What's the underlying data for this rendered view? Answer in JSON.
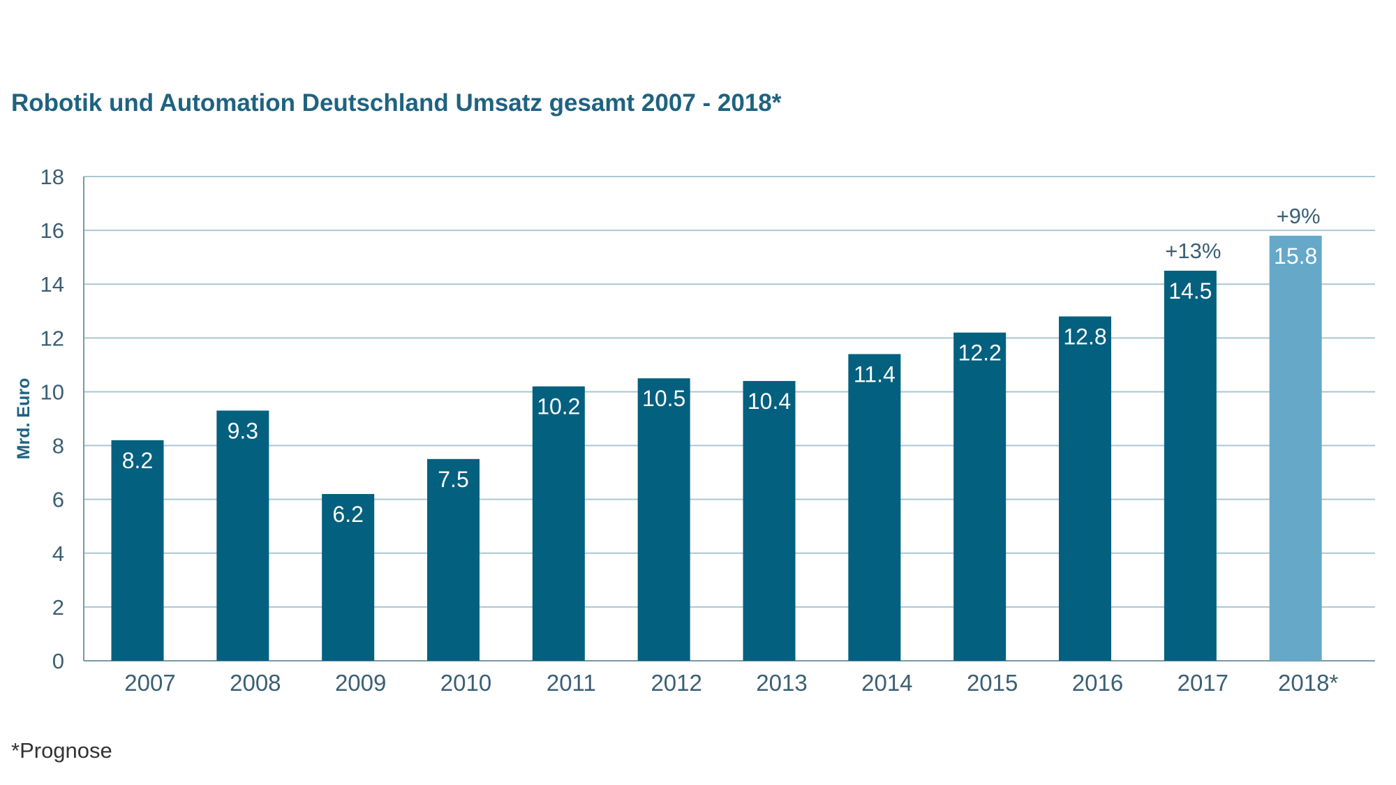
{
  "chart_data": {
    "type": "bar",
    "title": "Robotik und Automation Deutschland Umsatz gesamt 2007 - 2018*",
    "xlabel": "",
    "ylabel": "Mrd. Euro",
    "ylim": [
      0,
      18
    ],
    "yticks": [
      0,
      2,
      4,
      6,
      8,
      10,
      12,
      14,
      16,
      18
    ],
    "grid": true,
    "categories": [
      "2007",
      "2008",
      "2009",
      "2010",
      "2011",
      "2012",
      "2013",
      "2014",
      "2015",
      "2016",
      "2017",
      "2018*"
    ],
    "values": [
      8.2,
      9.3,
      6.2,
      7.5,
      10.2,
      10.5,
      10.4,
      11.4,
      12.2,
      12.8,
      14.5,
      15.8
    ],
    "data_labels": [
      "8.2",
      "9.3",
      "6.2",
      "7.5",
      "10.2",
      "10.5",
      "10.4",
      "11.4",
      "12.2",
      "12.8",
      "14.5",
      "15.8"
    ],
    "annotations": [
      {
        "category": "2017",
        "text": "+13%"
      },
      {
        "category": "2018*",
        "text": "+9%"
      }
    ],
    "colors": {
      "bar": "#03607f",
      "forecast_bar": "#66a8c8",
      "grid": "#a9c6d3",
      "title": "#1f6280"
    },
    "forecast_categories": [
      "2018*"
    ]
  },
  "footnote": "*Prognose"
}
